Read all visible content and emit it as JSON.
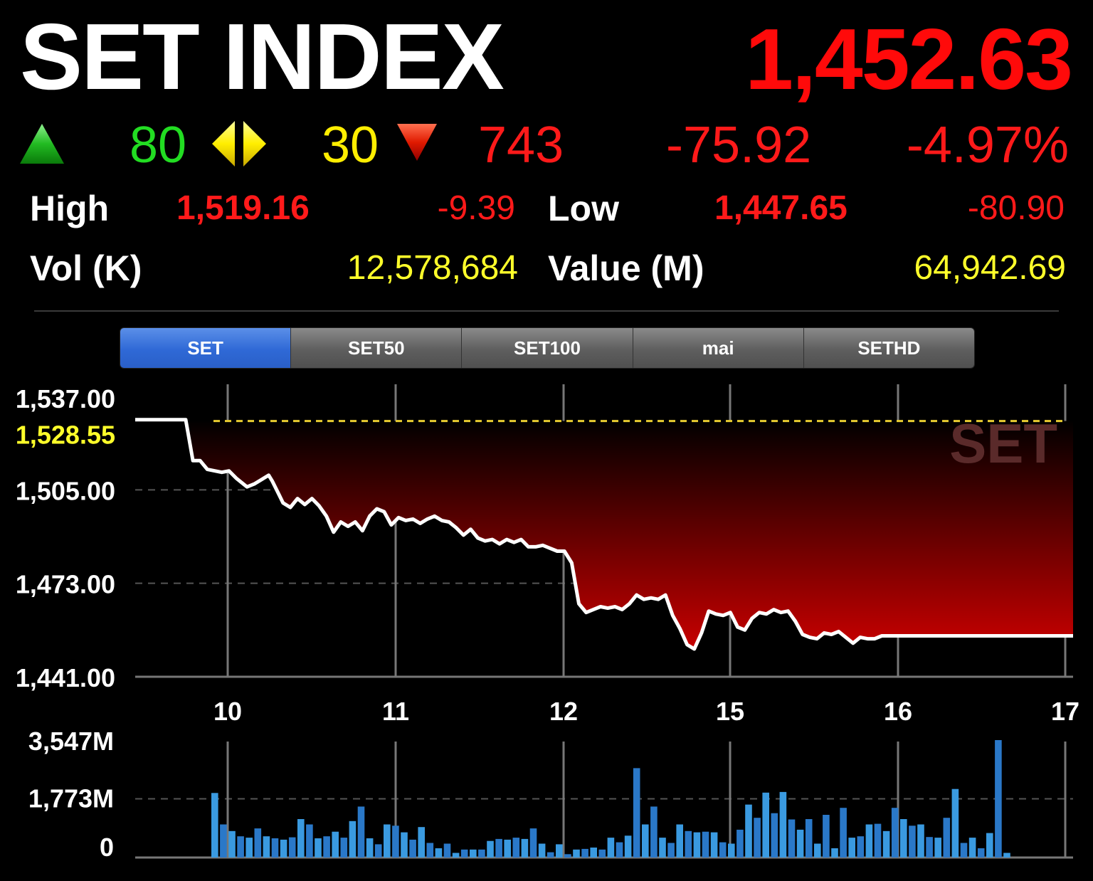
{
  "header": {
    "title": "SET INDEX",
    "last": "1,452.63",
    "advances": "80",
    "unchanged": "30",
    "declines": "743",
    "change": "-75.92",
    "change_pct": "-4.97%"
  },
  "stats": {
    "high_label": "High",
    "high_value": "1,519.16",
    "high_change": "-9.39",
    "low_label": "Low",
    "low_value": "1,447.65",
    "low_change": "-80.90",
    "vol_label": "Vol (K)",
    "vol_value": "12,578,684",
    "value_label": "Value (M)",
    "value_value": "64,942.69"
  },
  "tabs": [
    {
      "label": "SET",
      "active": true
    },
    {
      "label": "SET50",
      "active": false
    },
    {
      "label": "SET100",
      "active": false
    },
    {
      "label": "mai",
      "active": false
    },
    {
      "label": "SETHD",
      "active": false
    }
  ],
  "colors": {
    "up": "#22cc22",
    "unchanged": "#ffee00",
    "down": "#ff1a1a",
    "volume": "#2f8fd8",
    "baseline": "#e8cc30"
  },
  "chart_data": [
    {
      "type": "area",
      "watermark": "SET",
      "y_ticks": [
        "1,537.00",
        "1,505.00",
        "1,473.00",
        "1,441.00"
      ],
      "ylim": [
        1441,
        1537
      ],
      "reference_line": {
        "value": 1528.55,
        "label": "1,528.55"
      },
      "x_ticks": [
        "10",
        "11",
        "12",
        "15",
        "16",
        "17"
      ],
      "x": [
        0,
        0.5,
        0.9,
        1.2,
        1.4,
        1.6,
        1.8,
        2.0,
        2.4,
        2.6,
        2.8,
        3.1,
        3.3,
        3.5,
        3.7,
        3.8,
        4.0,
        4.1,
        4.3,
        4.5,
        4.7,
        4.9,
        5.1,
        5.3,
        5.5,
        5.7,
        5.9,
        6.1,
        6.3,
        6.5,
        6.7,
        6.9,
        7.1,
        7.3,
        7.5,
        7.7,
        7.9,
        8.1,
        8.3,
        8.5,
        8.7,
        8.9,
        9.1,
        9.3,
        9.5,
        9.7,
        9.9,
        10.1,
        10.3,
        10.5,
        10.7,
        10.9,
        11.1,
        11.3,
        11.5,
        11.7,
        11.9,
        12.1,
        12.3,
        12.5,
        12.7,
        12.9,
        13.1,
        13.3,
        13.5,
        13.7,
        13.9,
        14.1,
        14.3,
        14.5,
        14.7,
        14.9,
        15.1,
        15.3,
        15.5,
        15.7,
        15.9,
        16.1,
        16.3,
        16.5,
        16.7,
        16.9,
        17.1,
        17.3,
        17.5,
        17.7,
        17.9,
        18.1,
        18.3,
        18.5,
        18.7,
        18.9,
        19.1,
        19.3,
        19.5,
        19.7,
        19.9,
        20.1,
        20.3,
        20.5,
        20.7,
        20.9,
        21.1,
        21.3,
        21.5,
        21.7,
        21.9,
        22.2,
        22.5,
        22.8,
        23.1,
        23.4,
        23.7,
        24.0,
        24.3,
        24.6,
        24.9,
        25.2,
        25.5,
        25.8,
        26.0
      ],
      "values": [
        1529,
        1529,
        1529,
        1529,
        1529,
        1515,
        1515,
        1512,
        1511,
        1511.5,
        1509,
        1506,
        1507,
        1508.5,
        1510,
        1508,
        1503,
        1500.5,
        1499,
        1502,
        1500,
        1502,
        1499.5,
        1496,
        1490.5,
        1494,
        1492.5,
        1494,
        1491,
        1496,
        1498.5,
        1497.5,
        1493,
        1495.5,
        1494.5,
        1495,
        1493.5,
        1495,
        1496,
        1494.5,
        1494,
        1492,
        1489.5,
        1491.5,
        1488.5,
        1487.5,
        1488,
        1486.5,
        1488,
        1487,
        1488,
        1485.5,
        1485.5,
        1486,
        1485,
        1484,
        1484,
        1480,
        1466,
        1463,
        1464,
        1465,
        1464.5,
        1465,
        1464,
        1466,
        1469,
        1467.5,
        1468,
        1467.5,
        1469,
        1462,
        1457.5,
        1452,
        1450.5,
        1456,
        1463.5,
        1462.5,
        1462,
        1463,
        1458,
        1457,
        1461,
        1463,
        1462.5,
        1464,
        1463,
        1463.5,
        1460,
        1455.5,
        1454.5,
        1454,
        1456,
        1455.5,
        1456.5,
        1454.5,
        1452.5,
        1454.5,
        1454,
        1454,
        1455,
        1455,
        1455,
        1455,
        1455,
        1455,
        1455,
        1455,
        1455,
        1455,
        1455,
        1455,
        1455,
        1455,
        1455,
        1455,
        1455,
        1455,
        1455,
        1455,
        1455
      ]
    },
    {
      "type": "bar",
      "y_ticks": [
        "3,547M",
        "1,773M",
        "0"
      ],
      "ylim": [
        0,
        3547
      ],
      "x_ticks": [
        "10",
        "11",
        "12",
        "15",
        "16",
        "17"
      ],
      "values": [
        1950,
        1000,
        800,
        640,
        600,
        880,
        640,
        580,
        540,
        610,
        1160,
        1000,
        580,
        640,
        780,
        600,
        1100,
        1540,
        580,
        400,
        1000,
        960,
        760,
        540,
        920,
        440,
        280,
        420,
        140,
        240,
        240,
        240,
        500,
        560,
        540,
        600,
        560,
        880,
        420,
        160,
        400,
        100,
        240,
        260,
        300,
        240,
        600,
        460,
        660,
        2700,
        1000,
        1540,
        600,
        440,
        1000,
        800,
        760,
        780,
        760,
        460,
        420,
        840,
        1600,
        1200,
        1960,
        1340,
        1980,
        1150,
        840,
        1160,
        420,
        1290,
        280,
        1500,
        600,
        640,
        1000,
        1020,
        800,
        1500,
        1160,
        960,
        1000,
        620,
        600,
        1200,
        2070,
        440,
        600,
        280,
        740,
        3547,
        140
      ]
    }
  ]
}
